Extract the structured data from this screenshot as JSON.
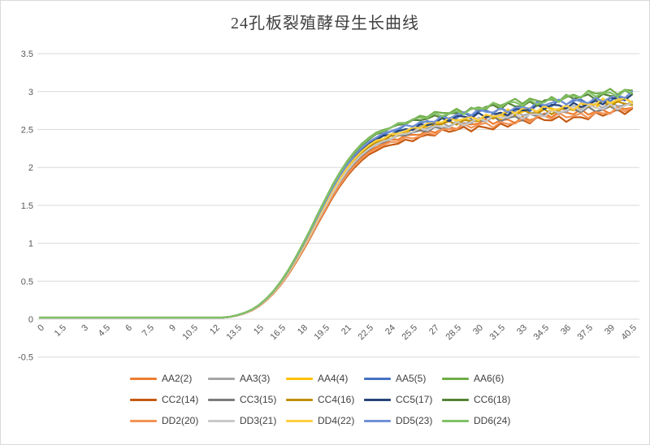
{
  "frame": {
    "background": "#ffffff",
    "border_color": "#d9d9d9"
  },
  "chart_data": {
    "type": "line",
    "title": "24孔板裂殖酵母生长曲线",
    "xlabel": "",
    "ylabel": "",
    "grid": "horizontal",
    "gridline_color": "#d9d9d9",
    "axis_label_color": "#595959",
    "legend_position": "bottom",
    "ylim": [
      -0.5,
      3.5
    ],
    "y_tick_labels": [
      "3.5",
      "3",
      "2.5",
      "2",
      "1.5",
      "1",
      "0.5",
      "0",
      "-0.5"
    ],
    "x": {
      "start": 0,
      "step": 0.5,
      "count": 82,
      "end": 40.5
    },
    "x_tick_labels": [
      "0",
      "1.5",
      "3",
      "4.5",
      "6",
      "7.5",
      "9",
      "10.5",
      "12",
      "13.5",
      "15",
      "16.5",
      "18",
      "19.5",
      "21",
      "22.5",
      "24",
      "25.5",
      "27",
      "28.5",
      "30",
      "31.5",
      "33",
      "34.5",
      "36",
      "37.5",
      "39",
      "40.5"
    ],
    "base_curve": [
      0.02,
      0.02,
      0.02,
      0.02,
      0.02,
      0.02,
      0.02,
      0.02,
      0.02,
      0.02,
      0.02,
      0.02,
      0.02,
      0.02,
      0.02,
      0.02,
      0.02,
      0.02,
      0.02,
      0.02,
      0.02,
      0.02,
      0.02,
      0.02,
      0.02,
      0.02,
      0.03,
      0.05,
      0.08,
      0.12,
      0.18,
      0.26,
      0.36,
      0.48,
      0.62,
      0.78,
      0.95,
      1.13,
      1.32,
      1.5,
      1.68,
      1.84,
      1.98,
      2.1,
      2.2,
      2.28,
      2.34,
      2.38,
      2.42,
      2.45,
      2.48,
      2.5,
      2.53,
      2.55,
      2.57,
      2.59,
      2.6,
      2.62,
      2.63,
      2.64,
      2.66,
      2.67,
      2.68,
      2.69,
      2.71,
      2.72,
      2.73,
      2.74,
      2.75,
      2.76,
      2.77,
      2.78,
      2.79,
      2.8,
      2.81,
      2.82,
      2.83,
      2.84,
      2.85,
      2.86,
      2.87,
      2.88
    ],
    "noise": {
      "amp1": 0.04,
      "freq1": 2.4,
      "amp2": 0.018,
      "freq2": 0.55,
      "ramp_start": 2.25,
      "ramp_range": 0.45
    },
    "series": [
      {
        "name": "AA2(2)",
        "color": "#ED7D31",
        "scale": 0.97,
        "phase": 0.0
      },
      {
        "name": "AA3(3)",
        "color": "#A5A5A5",
        "scale": 0.99,
        "phase": 2.4
      },
      {
        "name": "AA4(4)",
        "color": "#FFC000",
        "scale": 1.0,
        "phase": 4.8
      },
      {
        "name": "AA5(5)",
        "color": "#4472C4",
        "scale": 1.02,
        "phase": 7.2
      },
      {
        "name": "AA6(6)",
        "color": "#70AD47",
        "scale": 1.05,
        "phase": 9.6
      },
      {
        "name": "CC2(14)",
        "color": "#C55A11",
        "scale": 0.95,
        "phase": 1.2
      },
      {
        "name": "CC3(15)",
        "color": "#7B7B7B",
        "scale": 0.98,
        "phase": 3.6
      },
      {
        "name": "CC4(16)",
        "color": "#BF8F00",
        "scale": 0.995,
        "phase": 6.0
      },
      {
        "name": "CC5(17)",
        "color": "#264478",
        "scale": 1.01,
        "phase": 8.4
      },
      {
        "name": "CC6(18)",
        "color": "#548235",
        "scale": 1.04,
        "phase": 10.8
      },
      {
        "name": "DD2(20)",
        "color": "#F29355",
        "scale": 0.96,
        "phase": 0.6
      },
      {
        "name": "DD3(21)",
        "color": "#C9C9C9",
        "scale": 0.985,
        "phase": 3.0
      },
      {
        "name": "DD4(22)",
        "color": "#FFCF40",
        "scale": 1.005,
        "phase": 5.4
      },
      {
        "name": "DD5(23)",
        "color": "#7091D6",
        "scale": 1.025,
        "phase": 7.8
      },
      {
        "name": "DD6(24)",
        "color": "#82C166",
        "scale": 1.045,
        "phase": 10.2
      }
    ],
    "legend_rows": [
      [
        0,
        1,
        2,
        3,
        4
      ],
      [
        5,
        6,
        7,
        8,
        9
      ],
      [
        10,
        11,
        12,
        13,
        14
      ]
    ]
  }
}
